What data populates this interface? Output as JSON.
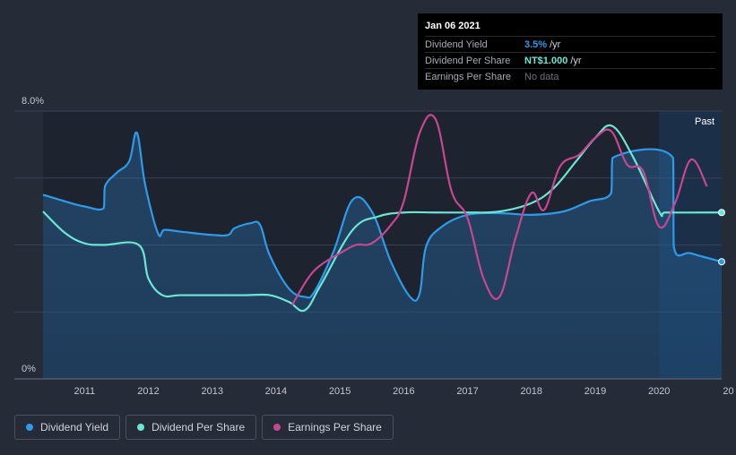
{
  "tooltip": {
    "date": "Jan 06 2021",
    "rows": [
      {
        "label": "Dividend Yield",
        "value": "3.5%",
        "unit": "/yr",
        "color": "#2f9ae8"
      },
      {
        "label": "Dividend Per Share",
        "value": "NT$1.000",
        "unit": "/yr",
        "color": "#6ce6d2"
      },
      {
        "label": "Earnings Per Share",
        "value": "No data",
        "unit": "",
        "color": "#6d717a"
      }
    ]
  },
  "past_label": "Past",
  "legend": [
    {
      "label": "Dividend Yield",
      "color": "#2f9ae8"
    },
    {
      "label": "Dividend Per Share",
      "color": "#6ce6d2"
    },
    {
      "label": "Earnings Per Share",
      "color": "#c6478f"
    }
  ],
  "chart_data": {
    "type": "line",
    "title": "",
    "xlabel": "",
    "ylabel": "",
    "ylim": [
      0,
      8.0
    ],
    "y_tick_labels": [
      "0%",
      "8.0%"
    ],
    "x_tick_labels": [
      "2011",
      "2012",
      "2013",
      "2014",
      "2015",
      "2016",
      "2017",
      "2018",
      "2019",
      "2020",
      "20"
    ],
    "grid": true,
    "series": [
      {
        "name": "Dividend Yield",
        "color": "#2f9ae8",
        "x": [
          2010.35,
          2010.7,
          2011.0,
          2011.3,
          2011.32,
          2011.5,
          2011.7,
          2011.82,
          2011.95,
          2012.15,
          2012.25,
          2012.5,
          2013.0,
          2013.25,
          2013.35,
          2013.6,
          2013.75,
          2013.9,
          2014.2,
          2014.45,
          2014.6,
          2014.9,
          2015.2,
          2015.5,
          2015.8,
          2016.1,
          2016.25,
          2016.35,
          2016.6,
          2017.0,
          2017.5,
          2018.0,
          2018.5,
          2018.9,
          2019.25,
          2019.27,
          2020.22,
          2020.23,
          2020.5,
          2020.98
        ],
        "y": [
          5.5,
          5.3,
          5.15,
          5.1,
          5.75,
          6.15,
          6.5,
          7.35,
          5.8,
          4.35,
          4.45,
          4.4,
          4.3,
          4.3,
          4.5,
          4.65,
          4.6,
          3.7,
          2.7,
          2.45,
          2.6,
          3.8,
          5.35,
          5.0,
          3.5,
          2.45,
          2.55,
          3.95,
          4.55,
          4.9,
          4.95,
          4.9,
          5.0,
          5.3,
          5.55,
          6.6,
          6.6,
          3.95,
          3.75,
          3.5
        ]
      },
      {
        "name": "Dividend Per Share",
        "color": "#6ce6d2",
        "x": [
          2010.35,
          2010.7,
          2011.0,
          2011.3,
          2011.85,
          2012.0,
          2012.22,
          2012.5,
          2013.0,
          2013.5,
          2013.9,
          2014.2,
          2014.45,
          2014.7,
          2015.2,
          2015.6,
          2016.0,
          2016.5,
          2017.0,
          2017.5,
          2018.0,
          2018.35,
          2018.7,
          2019.0,
          2019.27,
          2019.6,
          2020.0,
          2020.1,
          2020.98
        ],
        "y": [
          5.0,
          4.35,
          4.05,
          4.0,
          4.0,
          3.0,
          2.5,
          2.5,
          2.5,
          2.5,
          2.5,
          2.3,
          2.05,
          2.8,
          4.45,
          4.85,
          4.97,
          4.97,
          4.97,
          5.0,
          5.25,
          5.7,
          6.5,
          7.2,
          7.55,
          6.6,
          5.0,
          4.97,
          4.97
        ]
      },
      {
        "name": "Earnings Per Share",
        "color": "#c6478f",
        "x": [
          2014.25,
          2014.5,
          2014.7,
          2015.0,
          2015.25,
          2015.5,
          2015.8,
          2016.0,
          2016.25,
          2016.5,
          2016.75,
          2017.0,
          2017.25,
          2017.5,
          2017.75,
          2018.0,
          2018.2,
          2018.45,
          2018.75,
          2019.0,
          2019.25,
          2019.5,
          2019.75,
          2020.0,
          2020.25,
          2020.5,
          2020.75
        ],
        "y": [
          2.2,
          3.0,
          3.4,
          3.75,
          4.0,
          4.05,
          4.6,
          5.3,
          7.35,
          7.75,
          5.6,
          4.8,
          3.0,
          2.45,
          4.2,
          5.55,
          5.05,
          6.35,
          6.7,
          7.2,
          7.4,
          6.4,
          6.2,
          4.55,
          5.25,
          6.55,
          5.75
        ]
      }
    ]
  }
}
